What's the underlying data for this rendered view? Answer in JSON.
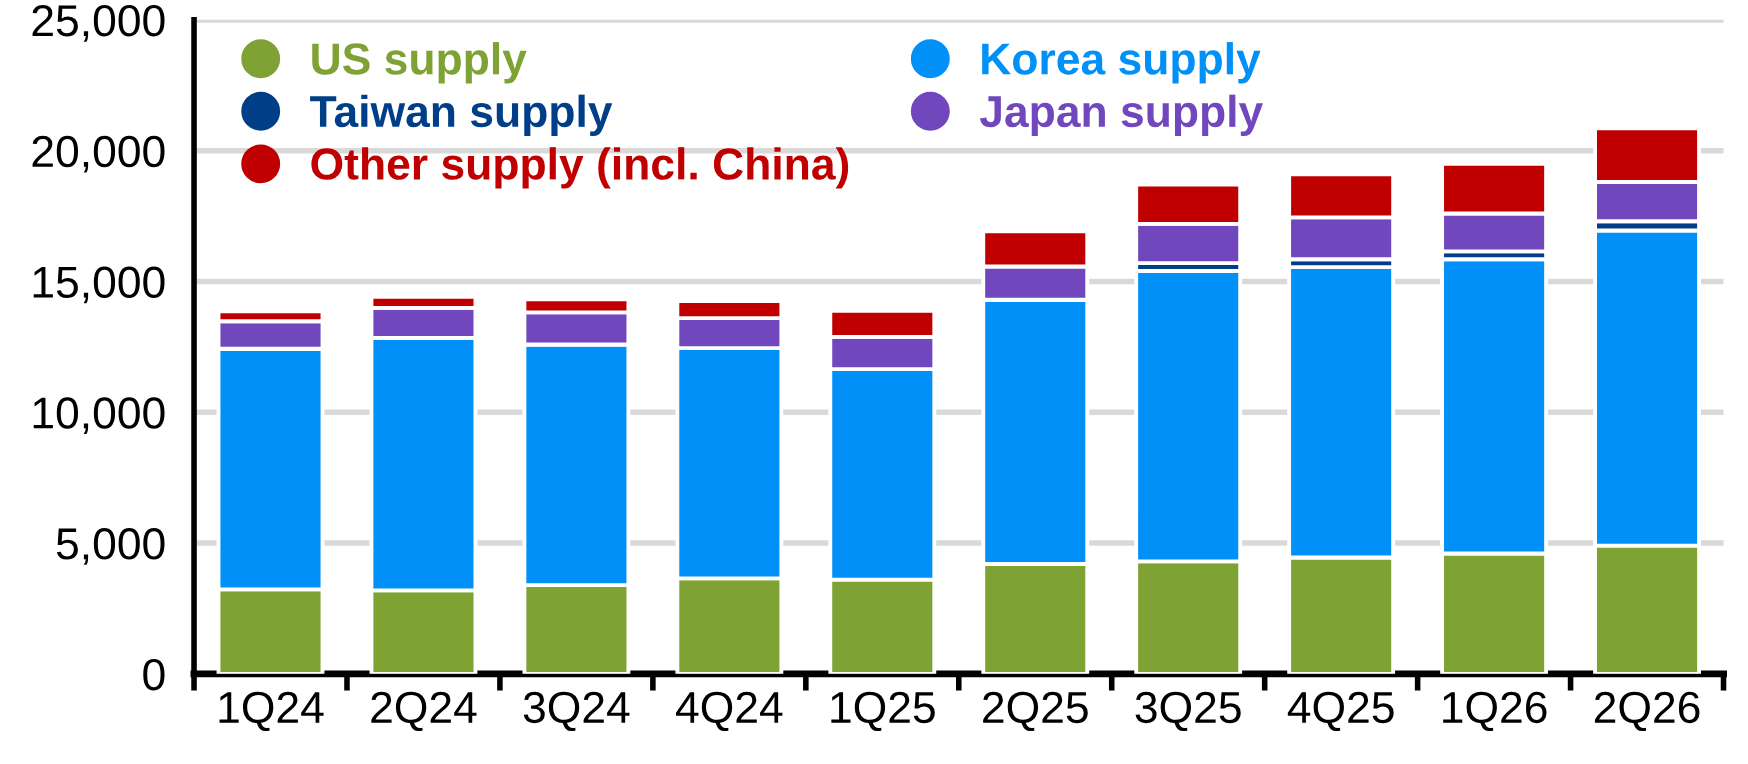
{
  "chart_data": {
    "type": "bar",
    "stacked": true,
    "categories": [
      "1Q24",
      "2Q24",
      "3Q24",
      "4Q24",
      "1Q25",
      "2Q25",
      "3Q25",
      "4Q25",
      "1Q26",
      "2Q26"
    ],
    "series": [
      {
        "name": "US supply",
        "color": "#7ea233",
        "values": [
          3230,
          3190,
          3390,
          3650,
          3600,
          4200,
          4300,
          4450,
          4600,
          4900
        ]
      },
      {
        "name": "Korea supply",
        "color": "#0090f8",
        "values": [
          9200,
          9650,
          9200,
          8800,
          8050,
          10100,
          11100,
          11100,
          11250,
          12050
        ]
      },
      {
        "name": "Taiwan supply",
        "color": "#003f87",
        "values": [
          null,
          null,
          null,
          null,
          null,
          null,
          300,
          300,
          300,
          350
        ]
      },
      {
        "name": "Japan supply",
        "color": "#7047bc",
        "values": [
          1050,
          1150,
          1230,
          1150,
          1230,
          1270,
          1500,
          1600,
          1450,
          1500
        ]
      },
      {
        "name": "Other supply (incl. China)",
        "color": "#c00000",
        "values": [
          380,
          420,
          500,
          650,
          1000,
          1350,
          1500,
          1650,
          1900,
          2050
        ]
      }
    ],
    "ylim": [
      0,
      25000
    ],
    "yticks": [
      {
        "value": 0,
        "label": "0"
      },
      {
        "value": 5000,
        "label": "5,000"
      },
      {
        "value": 10000,
        "label": "10,000"
      },
      {
        "value": 15000,
        "label": "15,000"
      },
      {
        "value": 20000,
        "label": "20,000"
      },
      {
        "value": 25000,
        "label": "25,000"
      }
    ],
    "grid": "y",
    "legend": "top left",
    "marker": "circle"
  }
}
